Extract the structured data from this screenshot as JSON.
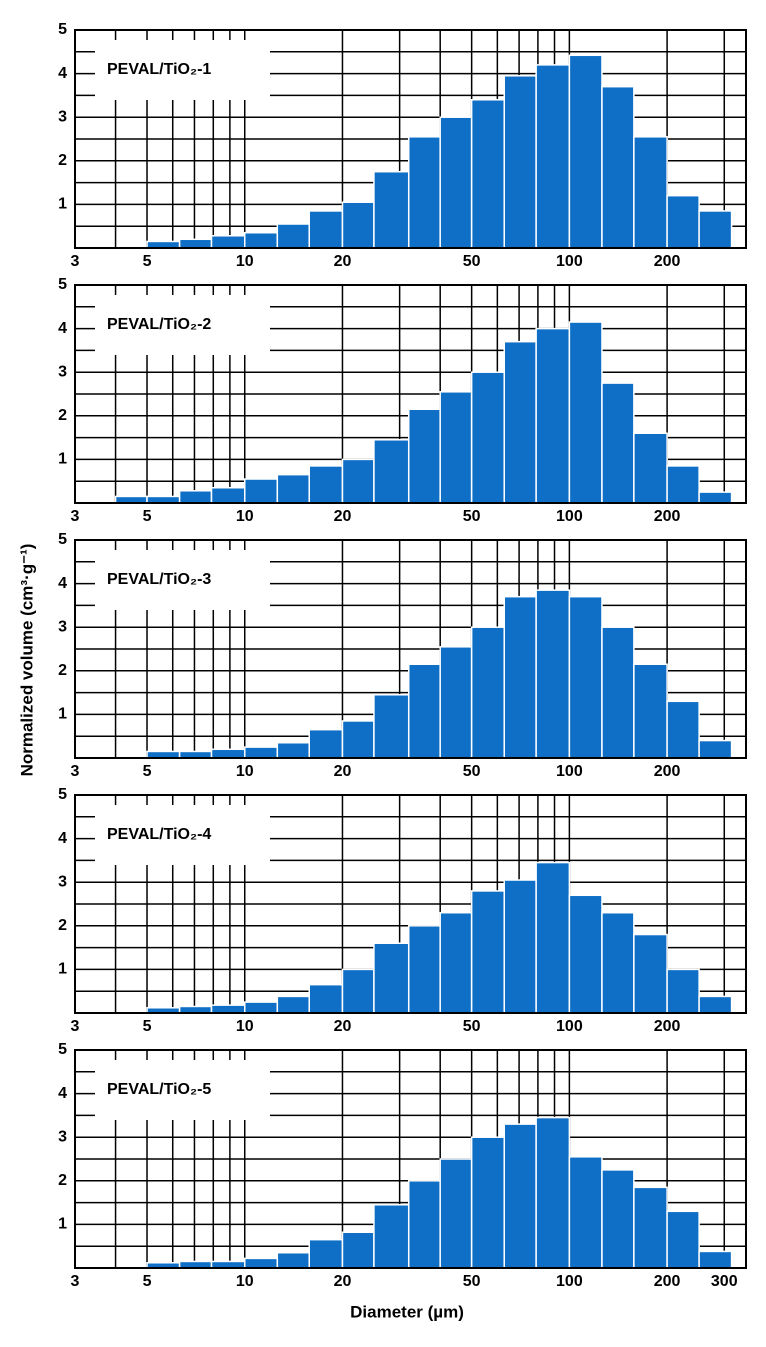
{
  "ylabel": "Normalized volume (cm³·g⁻¹)",
  "xlabel": "Diameter (µm)",
  "chart_data": [
    {
      "type": "histogram",
      "title": "PEVAL/TiO₂-1",
      "color": "#0f6fc6",
      "log_x": true,
      "grid": true,
      "bins": [
        5,
        6.3,
        7.9,
        10,
        12.6,
        15.8,
        20,
        25,
        32,
        40,
        50,
        63,
        79,
        100,
        126,
        158,
        200,
        251,
        316
      ],
      "values": [
        0.15,
        0.2,
        0.28,
        0.35,
        0.55,
        0.85,
        1.05,
        1.75,
        2.55,
        3.0,
        3.4,
        3.95,
        4.2,
        4.42,
        3.7,
        2.55,
        1.2,
        0.85
      ],
      "xlim": [
        3,
        350
      ],
      "xticks": [
        3,
        5,
        10,
        20,
        50,
        100,
        200
      ],
      "xgrid": [
        4,
        5,
        6,
        7,
        8,
        9,
        10,
        20,
        30,
        40,
        50,
        60,
        70,
        80,
        90,
        100,
        200,
        300
      ],
      "ylim": [
        0,
        5
      ],
      "yticks": [
        1,
        2,
        3,
        4,
        5
      ],
      "minor_yticks": [
        0.5,
        1.5,
        2.5,
        3.5,
        4.5
      ]
    },
    {
      "type": "histogram",
      "title": "PEVAL/TiO₂-2",
      "color": "#0f6fc6",
      "log_x": true,
      "grid": true,
      "bins": [
        4,
        5,
        6.3,
        7.9,
        10,
        12.6,
        15.8,
        20,
        25,
        32,
        40,
        50,
        63,
        79,
        100,
        126,
        158,
        200,
        251,
        316
      ],
      "values": [
        0.15,
        0.15,
        0.28,
        0.35,
        0.55,
        0.65,
        0.85,
        1.0,
        1.45,
        2.15,
        2.55,
        3.0,
        3.7,
        4.0,
        4.15,
        2.75,
        1.6,
        0.85,
        0.25
      ],
      "xlim": [
        3,
        350
      ],
      "xticks": [
        3,
        5,
        10,
        20,
        50,
        100,
        200
      ],
      "xgrid": [
        4,
        5,
        6,
        7,
        8,
        9,
        10,
        20,
        30,
        40,
        50,
        60,
        70,
        80,
        90,
        100,
        200,
        300
      ],
      "ylim": [
        0,
        5
      ],
      "yticks": [
        1,
        2,
        3,
        4,
        5
      ],
      "minor_yticks": [
        0.5,
        1.5,
        2.5,
        3.5,
        4.5
      ]
    },
    {
      "type": "histogram",
      "title": "PEVAL/TiO₂-3",
      "color": "#0f6fc6",
      "log_x": true,
      "grid": true,
      "bins": [
        5,
        6.3,
        7.9,
        10,
        12.6,
        15.8,
        20,
        25,
        32,
        40,
        50,
        63,
        79,
        100,
        126,
        158,
        200,
        251,
        316
      ],
      "values": [
        0.15,
        0.15,
        0.2,
        0.25,
        0.35,
        0.65,
        0.85,
        1.45,
        2.15,
        2.55,
        3.0,
        3.7,
        3.85,
        3.7,
        3.0,
        2.15,
        1.3,
        0.4
      ],
      "xlim": [
        3,
        350
      ],
      "xticks": [
        3,
        5,
        10,
        20,
        50,
        100,
        200
      ],
      "xgrid": [
        4,
        5,
        6,
        7,
        8,
        9,
        10,
        20,
        30,
        40,
        50,
        60,
        70,
        80,
        90,
        100,
        200,
        300
      ],
      "ylim": [
        0,
        5
      ],
      "yticks": [
        1,
        2,
        3,
        4,
        5
      ],
      "minor_yticks": [
        0.5,
        1.5,
        2.5,
        3.5,
        4.5
      ]
    },
    {
      "type": "histogram",
      "title": "PEVAL/TiO₂-4",
      "color": "#0f6fc6",
      "log_x": true,
      "grid": true,
      "bins": [
        5,
        6.3,
        7.9,
        10,
        12.6,
        15.8,
        20,
        25,
        32,
        40,
        50,
        63,
        79,
        100,
        126,
        158,
        200,
        251,
        316
      ],
      "values": [
        0.12,
        0.15,
        0.18,
        0.25,
        0.38,
        0.65,
        1.0,
        1.6,
        2.0,
        2.3,
        2.8,
        3.05,
        3.45,
        2.7,
        2.3,
        1.8,
        1.0,
        0.38
      ],
      "xlim": [
        3,
        350
      ],
      "xticks": [
        3,
        5,
        10,
        20,
        50,
        100,
        200
      ],
      "xgrid": [
        4,
        5,
        6,
        7,
        8,
        9,
        10,
        20,
        30,
        40,
        50,
        60,
        70,
        80,
        90,
        100,
        200,
        300
      ],
      "ylim": [
        0,
        5
      ],
      "yticks": [
        1,
        2,
        3,
        4,
        5
      ],
      "minor_yticks": [
        0.5,
        1.5,
        2.5,
        3.5,
        4.5
      ]
    },
    {
      "type": "histogram",
      "title": "PEVAL/TiO₂-5",
      "color": "#0f6fc6",
      "log_x": true,
      "grid": true,
      "bins": [
        5,
        6.3,
        7.9,
        10,
        12.6,
        15.8,
        20,
        25,
        32,
        40,
        50,
        63,
        79,
        100,
        126,
        158,
        200,
        251,
        316
      ],
      "values": [
        0.12,
        0.15,
        0.15,
        0.22,
        0.35,
        0.65,
        0.82,
        1.45,
        2.0,
        2.5,
        3.0,
        3.3,
        3.45,
        2.55,
        2.25,
        1.85,
        1.3,
        0.38
      ],
      "xlim": [
        3,
        350
      ],
      "xticks": [
        3,
        5,
        10,
        20,
        50,
        100,
        200,
        300
      ],
      "xgrid": [
        4,
        5,
        6,
        7,
        8,
        9,
        10,
        20,
        30,
        40,
        50,
        60,
        70,
        80,
        90,
        100,
        200,
        300
      ],
      "ylim": [
        0,
        5
      ],
      "yticks": [
        1,
        2,
        3,
        4,
        5
      ],
      "minor_yticks": [
        0.5,
        1.5,
        2.5,
        3.5,
        4.5
      ]
    }
  ]
}
